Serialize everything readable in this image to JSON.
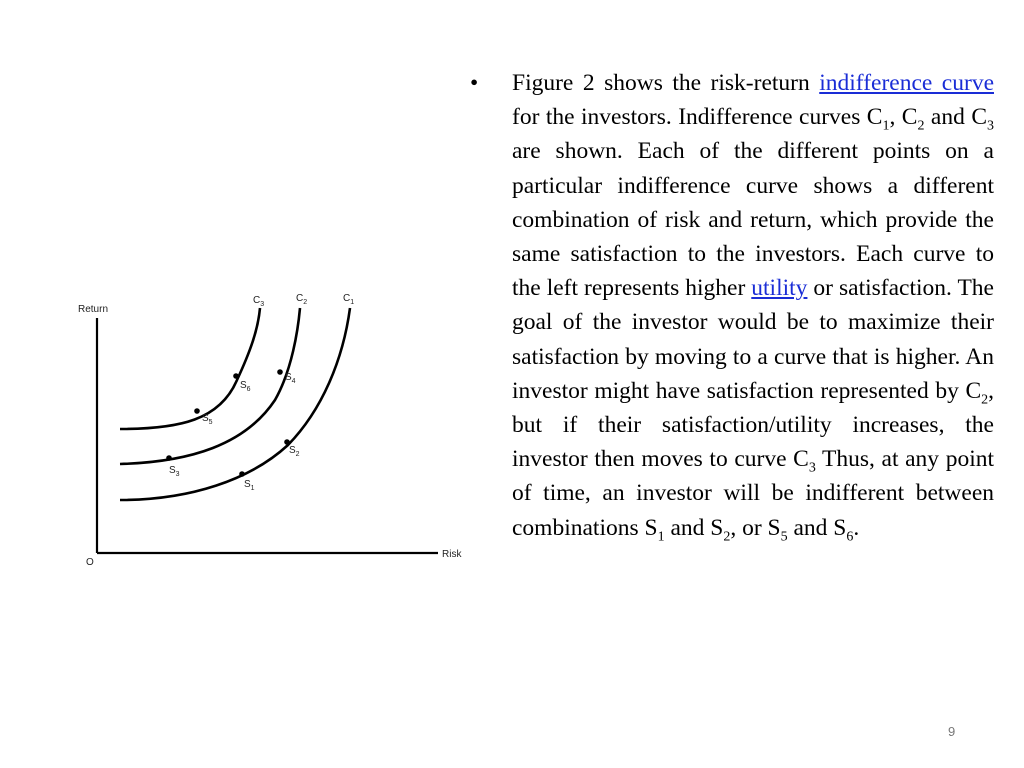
{
  "diagram": {
    "y_axis_label": "Return",
    "x_axis_label": "Risk",
    "origin_label": "O",
    "curves": [
      {
        "letter": "C",
        "sub": "3"
      },
      {
        "letter": "C",
        "sub": "2"
      },
      {
        "letter": "C",
        "sub": "1"
      }
    ],
    "points": [
      {
        "letter": "S",
        "sub": "1"
      },
      {
        "letter": "S",
        "sub": "2"
      },
      {
        "letter": "S",
        "sub": "3"
      },
      {
        "letter": "S",
        "sub": "4"
      },
      {
        "letter": "S",
        "sub": "5"
      },
      {
        "letter": "S",
        "sub": "6"
      }
    ]
  },
  "text": {
    "bullet": "•",
    "p1": "Figure 2 shows the risk-return ",
    "link1": "indifference curve",
    "p2": " for the investors. Indifference curves C",
    "sub_c1": "1",
    "p3": ", C",
    "sub_c2": "2",
    "p4": " and C",
    "sub_c3": "3",
    "p5": " are shown. Each of the different points on a particular indifference curve shows a different combination of risk and return, which provide the same satisfaction to the investors. Each curve to the left represents higher ",
    "link2": "utility",
    "p6": " or satisfaction. The goal of the investor would be to maximize their satisfaction by moving to a curve that is higher. An investor might have satisfaction represented by C",
    "sub_c2b": "2",
    "p7": ", but if their satisfaction/utility increases, the investor then moves to curve C",
    "sub_c3b": "3",
    "p8": " Thus, at any point of time, an investor will be indifferent between combinations S",
    "sub_s1": "1",
    "p9": " and S",
    "sub_s2": "2",
    "p10": ", or S",
    "sub_s5": "5",
    "p11": " and S",
    "sub_s6": "6",
    "p12": "."
  },
  "page_number": "9"
}
